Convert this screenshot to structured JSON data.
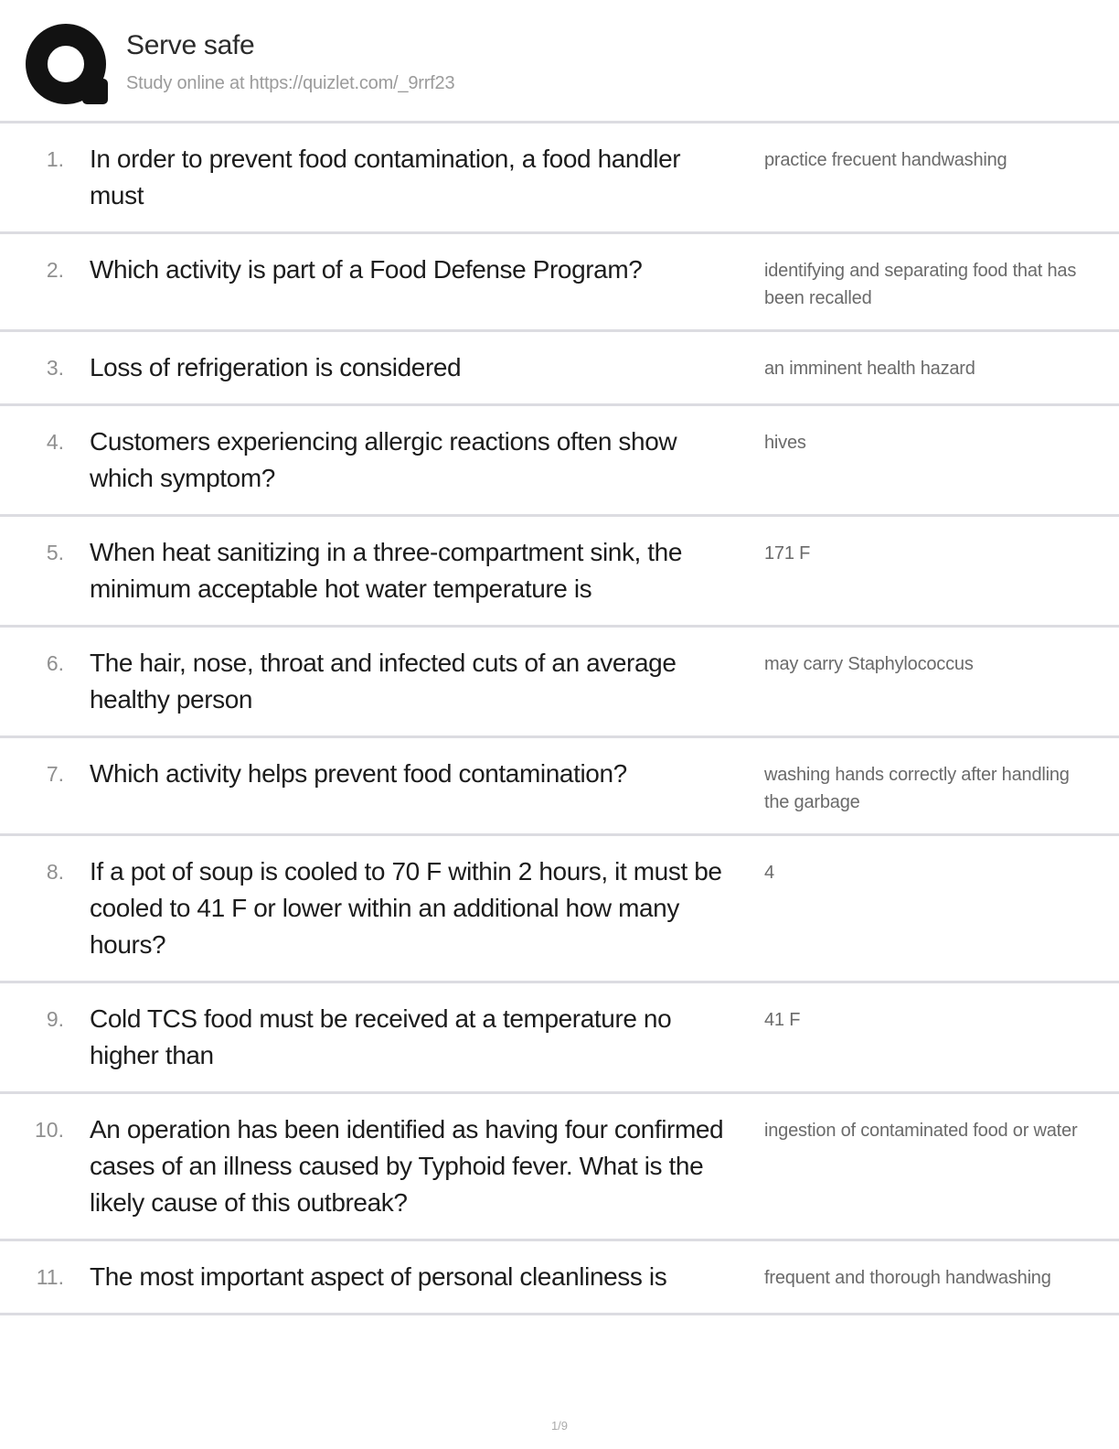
{
  "header": {
    "logo": "quizlet-q-logo",
    "title": "Serve safe",
    "subtitle": "Study online at https://quizlet.com/_9rrf23"
  },
  "colors": {
    "brand_logo": "#121212",
    "divider": "#dcdce1",
    "question_text": "#1c1c1c",
    "answer_text": "#6a6a6a"
  },
  "cards": [
    {
      "num": "1.",
      "question": "In order to prevent food contamination, a food handler must",
      "answer": "practice frecuent handwashing"
    },
    {
      "num": "2.",
      "question": "Which activity is part of a Food Defense Program?",
      "answer": "identifying and separating food that has been recalled"
    },
    {
      "num": "3.",
      "question": "Loss of refrigeration is considered",
      "answer": "an imminent health hazard"
    },
    {
      "num": "4.",
      "question": "Customers experiencing allergic reactions often show which symptom?",
      "answer": "hives"
    },
    {
      "num": "5.",
      "question": "When heat sanitizing in a three-compartment sink, the minimum acceptable hot water temperature is",
      "answer": "171 F"
    },
    {
      "num": "6.",
      "question": "The hair, nose, throat and infected cuts of an average healthy person",
      "answer": "may carry Staphylococcus"
    },
    {
      "num": "7.",
      "question": "Which activity helps prevent food contamination?",
      "answer": "washing hands correctly after handling the garbage"
    },
    {
      "num": "8.",
      "question": "If a pot of soup is cooled to 70 F within 2 hours, it must be cooled to 41 F or lower within an additional how many hours?",
      "answer": "4"
    },
    {
      "num": "9.",
      "question": "Cold TCS food must be received at a temperature no higher than",
      "answer": "41 F"
    },
    {
      "num": "10.",
      "question": "An operation has been identified as having four confirmed cases of an illness caused by Typhoid fever. What is the likely cause of this outbreak?",
      "answer": "ingestion of contaminated food or water"
    },
    {
      "num": "11.",
      "question": "The most important aspect of personal cleanliness is",
      "answer": "frequent and thorough handwashing"
    }
  ],
  "footer": {
    "page_indicator": "1/9"
  }
}
